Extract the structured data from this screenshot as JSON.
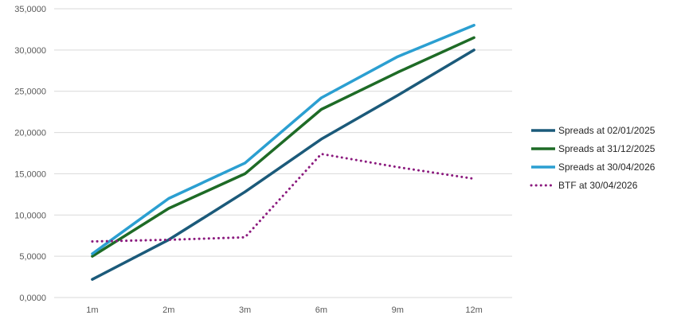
{
  "chart_data": {
    "type": "line",
    "title": "",
    "xlabel": "",
    "ylabel": "",
    "categories": [
      "1m",
      "2m",
      "3m",
      "6m",
      "9m",
      "12m"
    ],
    "ylim": [
      0,
      35
    ],
    "yticks": [
      0,
      5,
      10,
      15,
      20,
      25,
      30,
      35
    ],
    "ytick_labels": [
      "0,0000",
      "5,0000",
      "10,0000",
      "15,0000",
      "20,0000",
      "25,0000",
      "30,0000",
      "35,0000"
    ],
    "grid": true,
    "legend_position": "right",
    "series": [
      {
        "name": "Spreads at 02/01/2025",
        "values": [
          2.2,
          7.0,
          12.8,
          19.2,
          24.5,
          30.0
        ],
        "color": "#1b5a7a",
        "style": "solid"
      },
      {
        "name": "Spreads at 31/12/2025",
        "values": [
          5.0,
          10.8,
          15.0,
          22.8,
          27.3,
          31.5
        ],
        "color": "#1e6b26",
        "style": "solid"
      },
      {
        "name": "Spreads at 30/04/2026",
        "values": [
          5.3,
          12.0,
          16.3,
          24.2,
          29.2,
          33.0
        ],
        "color": "#2b9fd1",
        "style": "solid"
      },
      {
        "name": "BTF at 30/04/2026",
        "values": [
          6.8,
          7.0,
          7.3,
          17.4,
          15.8,
          14.4
        ],
        "color": "#8b1a7e",
        "style": "dotted"
      }
    ]
  }
}
